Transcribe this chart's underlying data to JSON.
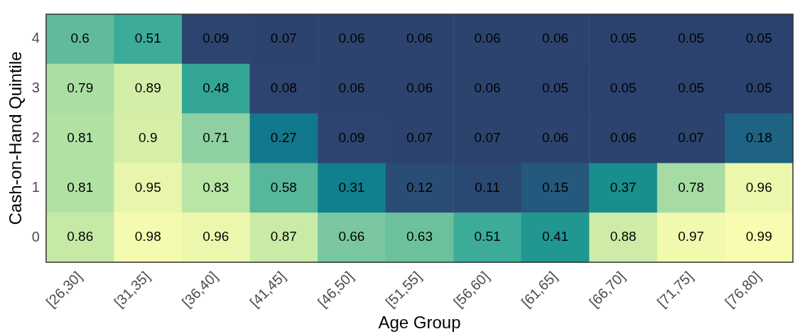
{
  "chart_data": {
    "type": "heatmap",
    "xlabel": "Age Group",
    "ylabel": "Cash-on-Hand Quintile",
    "categories": [
      "[26,30]",
      "[31,35]",
      "[36,40]",
      "[41,45]",
      "[46,50]",
      "[51,55]",
      "[56,60]",
      "[61,65]",
      "[66,70]",
      "[71,75]",
      "[76,80]"
    ],
    "y_categories": [
      "4",
      "3",
      "2",
      "1",
      "0"
    ],
    "cells": [
      [
        0.6,
        0.51,
        0.09,
        0.07,
        0.06,
        0.06,
        0.06,
        0.06,
        0.05,
        0.05,
        0.05
      ],
      [
        0.79,
        0.89,
        0.48,
        0.08,
        0.06,
        0.06,
        0.06,
        0.05,
        0.05,
        0.05,
        0.05
      ],
      [
        0.81,
        0.9,
        0.71,
        0.27,
        0.09,
        0.07,
        0.07,
        0.06,
        0.06,
        0.07,
        0.18
      ],
      [
        0.81,
        0.95,
        0.83,
        0.58,
        0.31,
        0.12,
        0.11,
        0.15,
        0.37,
        0.78,
        0.96
      ],
      [
        0.86,
        0.98,
        0.96,
        0.87,
        0.66,
        0.63,
        0.51,
        0.41,
        0.88,
        0.97,
        0.99
      ]
    ],
    "data_labels": true
  }
}
